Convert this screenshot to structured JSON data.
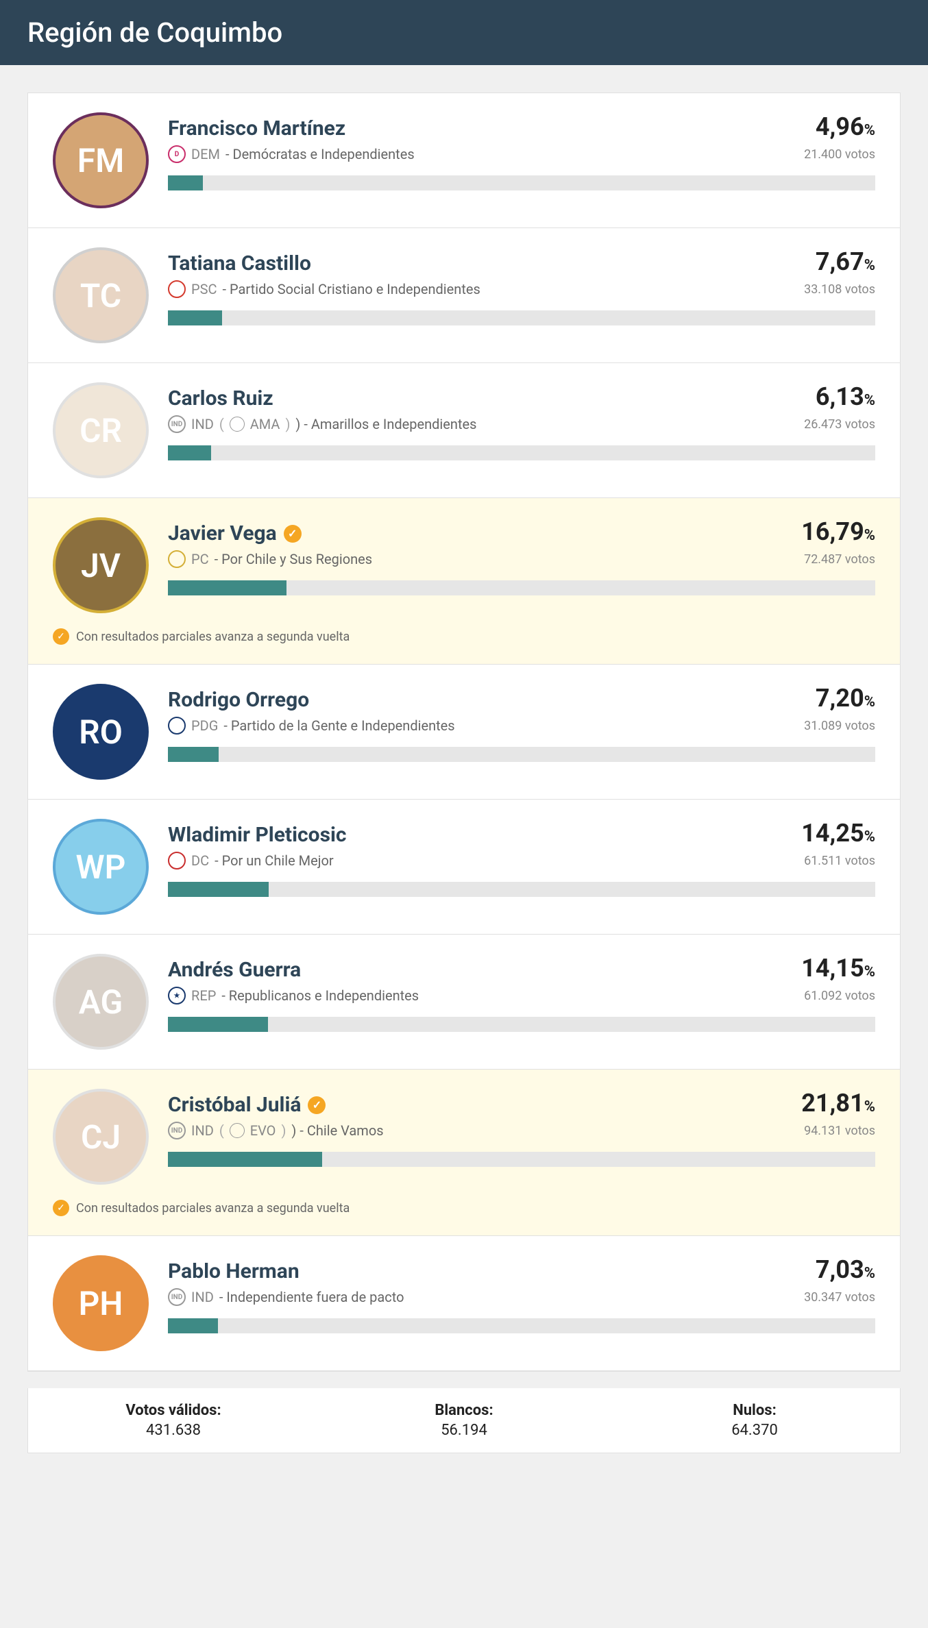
{
  "title": "Región de Coquimbo",
  "colors": {
    "header_bg": "#2e4557",
    "bar_fill": "#3e8a85",
    "bar_bg": "#e6e6e6",
    "winner_bg": "#fffbe6",
    "accent": "#f5a623"
  },
  "runoff_note": "Con resultados parciales avanza a segunda vuelta",
  "candidates": [
    {
      "name": "Francisco Martínez",
      "party_code": "DEM",
      "party_name": "- Demócratas e Independientes",
      "pct": "4,96",
      "votes": "21.400 votos",
      "bar_pct": 4.96,
      "avatar_border": "#6b2e5c",
      "avatar_bg": "#d4a574",
      "badge_color": "#c92e6b",
      "badge_text": "D",
      "winner": false,
      "sub_badge": null
    },
    {
      "name": "Tatiana Castillo",
      "party_code": "PSC",
      "party_name": "- Partido Social Cristiano e Independientes",
      "pct": "7,67",
      "votes": "33.108 votos",
      "bar_pct": 7.67,
      "avatar_border": "#d0d0d0",
      "avatar_bg": "#e8d5c4",
      "badge_color": "#d43a2e",
      "badge_text": "",
      "winner": false,
      "sub_badge": null
    },
    {
      "name": "Carlos Ruiz",
      "party_code": "IND",
      "party_name_prefix": "(",
      "sub_badge": "AMA",
      "party_name": ") - Amarillos e Independientes",
      "pct": "6,13",
      "votes": "26.473 votos",
      "bar_pct": 6.13,
      "avatar_border": "#e0e0e0",
      "avatar_bg": "#f0e6d8",
      "badge_color": "#999999",
      "badge_text": "IND",
      "winner": false
    },
    {
      "name": "Javier Vega",
      "party_code": "PC",
      "party_name": "- Por Chile y Sus Regiones",
      "pct": "16,79",
      "votes": "72.487 votos",
      "bar_pct": 16.79,
      "avatar_border": "#d4af37",
      "avatar_bg": "#8b6f3e",
      "badge_color": "#d4af37",
      "badge_text": "",
      "winner": true,
      "sub_badge": null
    },
    {
      "name": "Rodrigo Orrego",
      "party_code": "PDG",
      "party_name": "- Partido de la Gente e Independientes",
      "pct": "7,20",
      "votes": "31.089 votos",
      "bar_pct": 7.2,
      "avatar_border": "#1a3a6e",
      "avatar_bg": "#1a3a6e",
      "badge_color": "#1a3a6e",
      "badge_text": "",
      "winner": false,
      "sub_badge": null
    },
    {
      "name": "Wladimir Pleticosic",
      "party_code": "DC",
      "party_name": "- Por un Chile Mejor",
      "pct": "14,25",
      "votes": "61.511 votos",
      "bar_pct": 14.25,
      "avatar_border": "#5ba8d8",
      "avatar_bg": "#87ceeb",
      "badge_color": "#c92e2e",
      "badge_text": "",
      "winner": false,
      "sub_badge": null
    },
    {
      "name": "Andrés Guerra",
      "party_code": "REP",
      "party_name": "- Republicanos e Independientes",
      "pct": "14,15",
      "votes": "61.092 votos",
      "bar_pct": 14.15,
      "avatar_border": "#e0e0e0",
      "avatar_bg": "#d8d0c8",
      "badge_color": "#1a3a6e",
      "badge_text": "★",
      "winner": false,
      "sub_badge": null
    },
    {
      "name": "Cristóbal Juliá",
      "party_code": "IND",
      "party_name_prefix": "(",
      "sub_badge": "EVO",
      "party_name": ") - Chile Vamos",
      "pct": "21,81",
      "votes": "94.131 votos",
      "bar_pct": 21.81,
      "avatar_border": "#e0e0e0",
      "avatar_bg": "#e8d5c4",
      "badge_color": "#999999",
      "badge_text": "IND",
      "winner": true
    },
    {
      "name": "Pablo Herman",
      "party_code": "IND",
      "party_name": "- Independiente fuera de pacto",
      "pct": "7,03",
      "votes": "30.347 votos",
      "bar_pct": 7.03,
      "avatar_border": "#e89040",
      "avatar_bg": "#e89040",
      "badge_color": "#999999",
      "badge_text": "IND",
      "winner": false,
      "sub_badge": null
    }
  ],
  "summary": {
    "validos_label": "Votos válidos:",
    "validos_val": "431.638",
    "blancos_label": "Blancos:",
    "blancos_val": "56.194",
    "nulos_label": "Nulos:",
    "nulos_val": "64.370"
  }
}
